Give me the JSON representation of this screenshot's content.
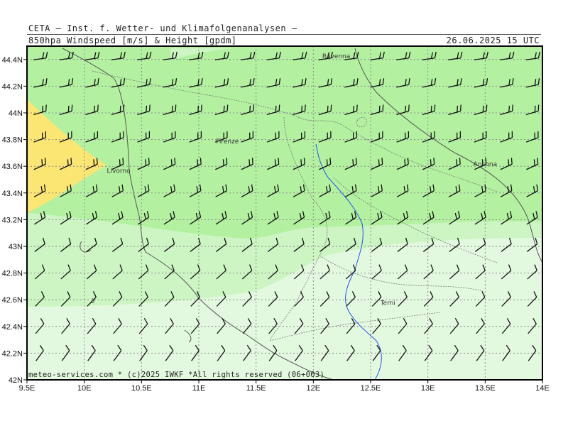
{
  "header": {
    "institute": "CETA — Inst. f. Wetter- und Klimafolgenanalysen —",
    "product": "850hpa Windspeed [m/s] & Height [gpdm]",
    "valid_time": "26.06.2025 15 UTC"
  },
  "footer": {
    "copyright": "meteo-services.com * (c)2025 IWKF *All rights reserved (06+003)"
  },
  "map": {
    "lon_range": [
      9.5,
      14
    ],
    "lat_range": [
      42,
      44.5
    ],
    "x_ticks": [
      "9.5E",
      "10E",
      "10.5E",
      "11E",
      "11.5E",
      "12E",
      "12.5E",
      "13E",
      "13.5E",
      "14E"
    ],
    "y_ticks": [
      "42N",
      "42.2N",
      "42.4N",
      "42.6N",
      "42.8N",
      "43N",
      "43.2N",
      "43.4N",
      "43.6N",
      "43.8N",
      "44N",
      "44.2N",
      "44.4N"
    ],
    "cities": [
      {
        "name": "Ravenna",
        "lon": 12.2,
        "lat": 44.41
      },
      {
        "name": "Firenze",
        "lon": 11.25,
        "lat": 43.77
      },
      {
        "name": "Livorno",
        "lon": 10.3,
        "lat": 43.55
      },
      {
        "name": "Ancona",
        "lon": 13.5,
        "lat": 43.6
      },
      {
        "name": "Terni",
        "lon": 12.65,
        "lat": 42.56
      }
    ],
    "colors": {
      "speed_light": "#e3f9df",
      "speed_mid": "#cdf5c3",
      "speed_high": "#b3f1a1",
      "speed_max": "#fbe573",
      "barb": "#111111",
      "coast": "#555555",
      "river": "#2255ee",
      "grid": "#8a8a8a"
    }
  }
}
